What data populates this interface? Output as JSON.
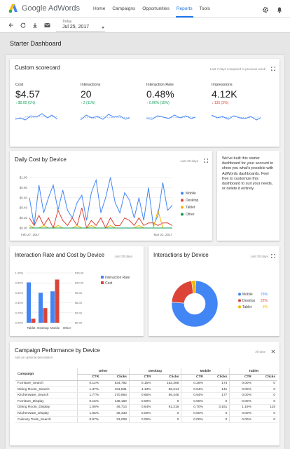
{
  "topbar": {
    "brand": "Google AdWords",
    "nav": [
      "Home",
      "Campaigns",
      "Opportunities",
      "Reports",
      "Tools"
    ],
    "active_nav": "Reports",
    "icons": [
      "gear-icon",
      "bell-icon"
    ]
  },
  "subbar": {
    "icons": [
      "back-arrow-icon",
      "refresh-icon",
      "download-icon",
      "email-icon"
    ],
    "date_label": "Today",
    "date_value": "Jul 25, 2017"
  },
  "page_title": "Starter Dashboard",
  "scorecard": {
    "title": "Custom scorecard",
    "period": "Last 7 days compared to previous week",
    "metrics": [
      {
        "label": "Cost",
        "value": "$4.57",
        "change": "↑ $0.00 (1%)",
        "trend": "up"
      },
      {
        "label": "Interactions",
        "value": "20",
        "change": "↑ 2 (11%)",
        "trend": "up"
      },
      {
        "label": "Interaction Rate",
        "value": "0.48%",
        "change": "↑ 0.06% (15%)",
        "trend": "up"
      },
      {
        "label": "Impressions",
        "value": "4.12K",
        "change": "↓ 135 (3%)",
        "trend": "down"
      }
    ]
  },
  "daily_cost": {
    "title": "Daily Cost by Device",
    "period": "Last 30 days",
    "note": "We've built this starter dashboard for your account to show you what's possible with AdWords dashboards. Feel free to customize this dashboard to suit your needs, or delete it entirely."
  },
  "interaction_rate": {
    "title": "Interaction Rate and Cost by Device",
    "period": "Last 30 days"
  },
  "interactions_device": {
    "title": "Interactions by Device",
    "period": "Last 30 days"
  },
  "chart_data": [
    {
      "type": "line",
      "title": "Daily Cost by Device",
      "x_start": "Feb 27, 2017",
      "x_end": "Mar 22, 2017",
      "y_ticks": [
        "$1.00",
        "$0.80",
        "$0.60",
        "$0.40",
        "$0.20",
        "$0.00"
      ],
      "ylim": [
        0,
        1
      ],
      "legend_position": "right",
      "series": [
        {
          "name": "Mobile",
          "color": "#4285f4",
          "values": [
            0.6,
            0.05,
            0.85,
            0.3,
            0.6,
            0.85,
            0.35,
            0.75,
            0.35,
            0.2,
            0.5,
            0.65,
            0.15,
            0.7,
            0.95,
            0.3,
            0.6,
            1.0,
            0.5,
            0.3,
            0.7,
            0.55,
            0.2,
            0.6,
            0.15,
            0.8,
            0.05,
            0.25,
            0.9,
            0.35,
            0.45
          ]
        },
        {
          "name": "Desktop",
          "color": "#db4437",
          "values": [
            0.2,
            0.05,
            0.25,
            0.05,
            0.2,
            0.0,
            0.35,
            0.15,
            0.05,
            0.2,
            0.05,
            0.4,
            0.0,
            0.15,
            0.05,
            0.2,
            0.0,
            0.2,
            0.05,
            0.05,
            0.2,
            0.15,
            0.05,
            0.2,
            0.05,
            0.1,
            0.1,
            0.05,
            0.1,
            0.1,
            0.05
          ]
        },
        {
          "name": "Tablet",
          "color": "#f4b400",
          "values": [
            0.05,
            0.0,
            0.0,
            0.05,
            0.0,
            0.0,
            0.05,
            0.0,
            0.0,
            0.0,
            0.05,
            0.0,
            0.0,
            0.05,
            0.0,
            0.0,
            0.0,
            0.05,
            0.0,
            0.0,
            0.0,
            0.0,
            0.0,
            0.05,
            0.0,
            0.0,
            0.0,
            0.35,
            0.0,
            0.0,
            0.0
          ]
        },
        {
          "name": "Other",
          "color": "#0f9d58",
          "values": [
            0,
            0,
            0,
            0,
            0,
            0,
            0,
            0,
            0,
            0,
            0,
            0,
            0,
            0,
            0,
            0,
            0,
            0,
            0,
            0,
            0,
            0,
            0,
            0,
            0,
            0,
            0,
            0,
            0,
            0,
            0
          ]
        }
      ]
    },
    {
      "type": "bar",
      "title": "Interaction Rate and Cost by Device",
      "categories": [
        "Tablet",
        "Desktop",
        "Mobile",
        "Other"
      ],
      "y_left_ticks": [
        "1.00%",
        "0.80%",
        "0.60%",
        "0.40%",
        "0.20%",
        "0.00%"
      ],
      "y_right_ticks": [
        "$15.00",
        "$12.00",
        "$9.00",
        "$6.00",
        "$3.00",
        "$0.00"
      ],
      "ylim_left": [
        0,
        1
      ],
      "ylim_right": [
        0,
        15
      ],
      "legend_position": "right",
      "series": [
        {
          "name": "Interaction Rate",
          "color": "#4285f4",
          "axis": "left",
          "values": [
            0.81,
            0.6,
            0.63,
            0
          ]
        },
        {
          "name": "Cost",
          "color": "#db4437",
          "axis": "right",
          "values": [
            1.2,
            4.4,
            13.0,
            0
          ]
        }
      ]
    },
    {
      "type": "pie",
      "title": "Interactions by Device",
      "donut": true,
      "legend_position": "right",
      "slices": [
        {
          "name": "Mobile",
          "value": 76,
          "label": "76%",
          "color": "#4285f4"
        },
        {
          "name": "Desktop",
          "value": 22,
          "label": "22%",
          "color": "#db4437"
        },
        {
          "name": "Tablet",
          "value": 3,
          "label": "3%",
          "color": "#f4b400"
        }
      ]
    }
  ],
  "campaign": {
    "title": "Campaign Performance by Device",
    "subtitle": "Add an optional description",
    "period": "All time",
    "col_campaign": "Campaign",
    "groups": [
      "Other",
      "Desktop",
      "Mobile",
      "Tablet"
    ],
    "sub_ctr": "CTR",
    "sub_clicks": "Clicks",
    "rows": [
      {
        "name": "Furniture_Search",
        "cells": [
          "0.12%",
          "534,782",
          "0.15%",
          "152,366",
          "0.25%",
          "174",
          "0.00%",
          "0"
        ]
      },
      {
        "name": "Dining Room_Search",
        "cells": [
          "1.37%",
          "431,531",
          "1.13%",
          "66,214",
          "0.64%",
          "141",
          "0.00%",
          "0"
        ]
      },
      {
        "name": "Kitchenware_Search",
        "cells": [
          "1.77%",
          "370,964",
          "0.66%",
          "66,446",
          "0.54%",
          "177",
          "0.00%",
          "0"
        ]
      },
      {
        "name": "Furniture_Display",
        "cells": [
          "0.15%",
          "148,160",
          "0.00%",
          "0",
          "0.00%",
          "0",
          "0.00%",
          "0"
        ]
      },
      {
        "name": "Dining Room_Display",
        "cells": [
          "1.06%",
          "46,714",
          "0.64%",
          "91,316",
          "0.70%",
          "3,161",
          "1.19%",
          "115"
        ]
      },
      {
        "name": "Kitchenware_Display",
        "cells": [
          "1.55%",
          "36,433",
          "0.00%",
          "0",
          "0.00%",
          "0",
          "0.00%",
          "0"
        ]
      },
      {
        "name": "Culinary Tools_Search",
        "cells": [
          "0.97%",
          "23,008",
          "0.00%",
          "0",
          "0.00%",
          "0",
          "0.00%",
          "0"
        ]
      }
    ]
  }
}
